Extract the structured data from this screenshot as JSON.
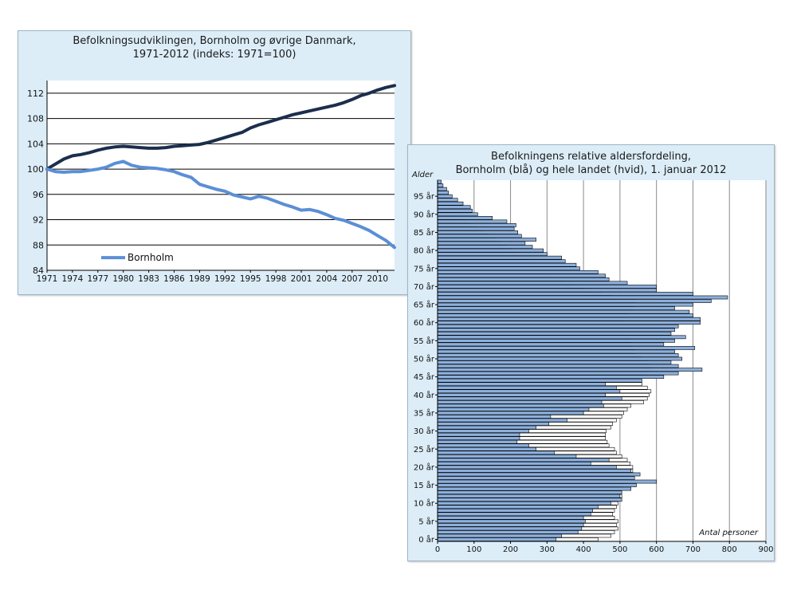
{
  "chart_data": [
    {
      "type": "line",
      "title": "Befolkningsudviklingen, Bornholm og øvrige Danmark, 1971-2012 (indeks: 1971=100)",
      "title_lines": [
        "Befolkningsudviklingen, Bornholm og øvrige Danmark,",
        "1971-2012 (indeks: 1971=100)"
      ],
      "xlabel": "",
      "ylabel": "",
      "xlim": [
        1971,
        2012
      ],
      "ylim": [
        84,
        114
      ],
      "x_ticks": [
        "1971",
        "1974",
        "1977",
        "1980",
        "1983",
        "1986",
        "1989",
        "1992",
        "1995",
        "1998",
        "2001",
        "2004",
        "2007",
        "2010"
      ],
      "y_ticks": [
        84,
        88,
        92,
        96,
        100,
        104,
        108,
        112
      ],
      "legend": "bottom-left",
      "series": [
        {
          "name": "Øvrige Danmark",
          "color": "#1c2e4d",
          "x": [
            1971,
            1972,
            1973,
            1974,
            1975,
            1976,
            1977,
            1978,
            1979,
            1980,
            1981,
            1982,
            1983,
            1984,
            1985,
            1986,
            1987,
            1988,
            1989,
            1990,
            1991,
            1992,
            1993,
            1994,
            1995,
            1996,
            1997,
            1998,
            1999,
            2000,
            2001,
            2002,
            2003,
            2004,
            2005,
            2006,
            2007,
            2008,
            2009,
            2010,
            2011,
            2012
          ],
          "values": [
            100,
            100.8,
            101.6,
            102.1,
            102.3,
            102.6,
            103.0,
            103.3,
            103.5,
            103.6,
            103.5,
            103.4,
            103.3,
            103.3,
            103.4,
            103.6,
            103.7,
            103.8,
            103.9,
            104.2,
            104.6,
            105.0,
            105.4,
            105.8,
            106.5,
            107.0,
            107.4,
            107.8,
            108.2,
            108.6,
            108.9,
            109.2,
            109.5,
            109.8,
            110.1,
            110.5,
            111.0,
            111.6,
            112.0,
            112.5,
            112.9,
            113.2
          ]
        },
        {
          "name": "Bornholm",
          "color": "#5b8fd6",
          "x": [
            1971,
            1972,
            1973,
            1974,
            1975,
            1976,
            1977,
            1978,
            1979,
            1980,
            1981,
            1982,
            1983,
            1984,
            1985,
            1986,
            1987,
            1988,
            1989,
            1990,
            1991,
            1992,
            1993,
            1994,
            1995,
            1996,
            1997,
            1998,
            1999,
            2000,
            2001,
            2002,
            2003,
            2004,
            2005,
            2006,
            2007,
            2008,
            2009,
            2010,
            2011,
            2012
          ],
          "values": [
            100,
            99.6,
            99.5,
            99.6,
            99.6,
            99.8,
            100.0,
            100.3,
            100.9,
            101.2,
            100.6,
            100.3,
            100.2,
            100.1,
            99.9,
            99.6,
            99.1,
            98.7,
            97.6,
            97.2,
            96.8,
            96.5,
            95.9,
            95.6,
            95.3,
            95.7,
            95.4,
            94.9,
            94.4,
            94.0,
            93.5,
            93.6,
            93.3,
            92.8,
            92.2,
            91.9,
            91.4,
            90.9,
            90.3,
            89.5,
            88.7,
            87.6
          ]
        }
      ],
      "legend_entries": [
        "Bornholm"
      ]
    },
    {
      "type": "bar",
      "orientation": "horizontal",
      "title": "Befolkningens relative aldersfordeling, Bornholm (blå) og hele landet (hvid), 1. januar 2012",
      "title_lines": [
        "Befolkningens relative aldersfordeling,",
        "Bornholm (blå) og hele landet (hvid), 1. januar 2012"
      ],
      "ylabel": "Alder",
      "xlabel": "Antal personer",
      "xlim": [
        0,
        900
      ],
      "x_ticks": [
        0,
        100,
        200,
        300,
        400,
        500,
        600,
        700,
        800,
        900
      ],
      "y_tick_labels": [
        "0 år",
        "5 år",
        "10 år",
        "15 år",
        "20 år",
        "25 år",
        "30 år",
        "35 år",
        "40 år",
        "45 år",
        "50 år",
        "55 år",
        "60 år",
        "65 år",
        "70 år",
        "75 år",
        "80 år",
        "85 år",
        "90 år",
        "95 år"
      ],
      "categories": [
        0,
        1,
        2,
        3,
        4,
        5,
        6,
        7,
        8,
        9,
        10,
        11,
        12,
        13,
        14,
        15,
        16,
        17,
        18,
        19,
        20,
        21,
        22,
        23,
        24,
        25,
        26,
        27,
        28,
        29,
        30,
        31,
        32,
        33,
        34,
        35,
        36,
        37,
        38,
        39,
        40,
        41,
        42,
        43,
        44,
        45,
        46,
        47,
        48,
        49,
        50,
        51,
        52,
        53,
        54,
        55,
        56,
        57,
        58,
        59,
        60,
        61,
        62,
        63,
        64,
        65,
        66,
        67,
        68,
        69,
        70,
        71,
        72,
        73,
        74,
        75,
        76,
        77,
        78,
        79,
        80,
        81,
        82,
        83,
        84,
        85,
        86,
        87,
        88,
        89,
        90,
        91,
        92,
        93,
        94,
        95,
        96,
        97,
        98,
        99
      ],
      "series": [
        {
          "name": "Hele landet",
          "color": "#ffffff",
          "values": [
            440,
            475,
            485,
            495,
            490,
            495,
            485,
            480,
            485,
            490,
            495,
            500,
            505,
            505,
            500,
            510,
            520,
            530,
            540,
            535,
            535,
            528,
            520,
            505,
            490,
            485,
            470,
            465,
            460,
            460,
            462,
            475,
            480,
            490,
            505,
            510,
            520,
            530,
            565,
            575,
            580,
            585,
            575,
            560,
            555,
            560,
            575,
            590,
            585,
            575,
            560,
            545,
            540,
            535,
            530,
            530,
            525,
            525,
            520,
            515,
            510,
            515,
            520,
            525,
            535,
            540,
            545,
            480,
            450,
            420,
            400,
            370,
            345,
            320,
            300,
            280,
            265,
            250,
            235,
            220,
            205,
            190,
            175,
            160,
            140,
            125,
            110,
            95,
            80,
            65,
            55,
            45,
            35,
            28,
            20,
            15,
            10,
            7,
            5,
            3
          ]
        },
        {
          "name": "Bornholm",
          "color": "#8db0dc",
          "values": [
            325,
            340,
            385,
            395,
            400,
            405,
            400,
            420,
            425,
            440,
            475,
            505,
            500,
            505,
            530,
            545,
            600,
            540,
            555,
            530,
            490,
            420,
            470,
            380,
            320,
            270,
            250,
            218,
            225,
            225,
            250,
            270,
            305,
            355,
            310,
            400,
            415,
            455,
            450,
            505,
            460,
            500,
            490,
            460,
            560,
            620,
            660,
            725,
            660,
            640,
            670,
            660,
            650,
            705,
            620,
            650,
            680,
            640,
            650,
            660,
            720,
            720,
            700,
            690,
            650,
            700,
            750,
            795,
            700,
            600,
            600,
            520,
            470,
            460,
            440,
            390,
            380,
            350,
            340,
            300,
            290,
            260,
            240,
            270,
            230,
            220,
            210,
            215,
            190,
            150,
            110,
            95,
            90,
            70,
            55,
            40,
            30,
            25,
            15,
            10
          ]
        }
      ]
    }
  ]
}
